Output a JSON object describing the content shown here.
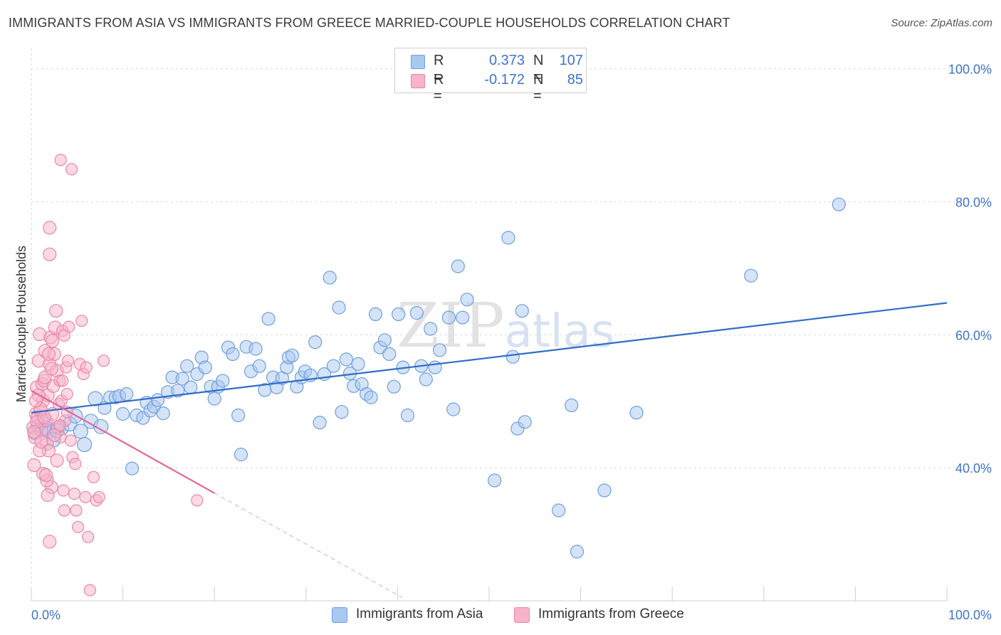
{
  "title": "IMMIGRANTS FROM ASIA VS IMMIGRANTS FROM GREECE MARRIED-COUPLE HOUSEHOLDS CORRELATION CHART",
  "source": "Source: ZipAtlas.com",
  "watermark": "ZIPatlas",
  "legend": {
    "rows": [
      {
        "r_label": "R =",
        "r_value": "0.373",
        "n_label": "N =",
        "n_value": "107"
      },
      {
        "r_label": "R =",
        "r_value": "-0.172",
        "n_label": "N =",
        "n_value": "85"
      }
    ]
  },
  "bottom_legend": [
    "Immigrants from Asia",
    "Immigrants from Greece"
  ],
  "colors": {
    "asia_fill": "#a9c8f0",
    "asia_stroke": "#6f9fde",
    "asia_line": "#2f6cc9",
    "greece_fill": "#f6b3ca",
    "greece_stroke": "#ea86a8",
    "greece_line": "#e0679a",
    "tick_text": "#3f74c8",
    "grid": "#d9d9d9"
  },
  "chart_data": {
    "type": "scatter",
    "title": "IMMIGRANTS FROM ASIA VS IMMIGRANTS FROM GREECE MARRIED-COUPLE HOUSEHOLDS CORRELATION CHART",
    "xlabel": "",
    "ylabel": "Married-couple Households",
    "xlim": [
      0,
      100
    ],
    "ylim": [
      20,
      102
    ],
    "x_tick_labels": [
      "0.0%",
      "100.0%"
    ],
    "y_tick_labels": [
      "40.0%",
      "60.0%",
      "80.0%",
      "100.0%"
    ],
    "y_ticks": [
      40,
      60,
      80,
      100
    ],
    "grid": true,
    "legend_position": "top-center",
    "series": [
      {
        "name": "Immigrants from Asia",
        "R": 0.373,
        "N": 107,
        "trend": {
          "x": [
            0,
            100
          ],
          "y": [
            48.3,
            64.8
          ],
          "style": "solid"
        },
        "points": [
          [
            0.4,
            45.3
          ],
          [
            0.8,
            46.3
          ],
          [
            1.2,
            47.0
          ],
          [
            1.6,
            46.0
          ],
          [
            2.0,
            45.5
          ],
          [
            2.4,
            44.2
          ],
          [
            2.8,
            45.6
          ],
          [
            3.3,
            46.0
          ],
          [
            4.2,
            46.6
          ],
          [
            4.8,
            47.8
          ],
          [
            5.4,
            45.5
          ],
          [
            5.8,
            43.5
          ],
          [
            6.5,
            47.0
          ],
          [
            7.0,
            50.4
          ],
          [
            7.6,
            46.2
          ],
          [
            8.0,
            49.0
          ],
          [
            8.6,
            50.6
          ],
          [
            9.2,
            50.6
          ],
          [
            9.6,
            50.8
          ],
          [
            10.0,
            48.1
          ],
          [
            10.4,
            51.1
          ],
          [
            11.0,
            39.9
          ],
          [
            11.5,
            47.9
          ],
          [
            12.2,
            47.5
          ],
          [
            12.6,
            49.8
          ],
          [
            13.0,
            48.6
          ],
          [
            13.4,
            49.2
          ],
          [
            13.8,
            50.2
          ],
          [
            14.4,
            48.2
          ],
          [
            14.9,
            51.4
          ],
          [
            15.4,
            53.6
          ],
          [
            16.0,
            51.6
          ],
          [
            16.5,
            53.4
          ],
          [
            17.0,
            55.3
          ],
          [
            17.4,
            52.1
          ],
          [
            18.1,
            54.1
          ],
          [
            18.6,
            56.6
          ],
          [
            19.0,
            55.1
          ],
          [
            19.6,
            52.2
          ],
          [
            20.0,
            50.4
          ],
          [
            20.4,
            52.2
          ],
          [
            20.9,
            53.1
          ],
          [
            21.5,
            58.1
          ],
          [
            22.0,
            57.1
          ],
          [
            22.6,
            47.9
          ],
          [
            22.9,
            42.0
          ],
          [
            23.5,
            58.2
          ],
          [
            24.0,
            54.5
          ],
          [
            24.5,
            57.9
          ],
          [
            24.9,
            55.3
          ],
          [
            25.5,
            51.7
          ],
          [
            25.9,
            62.4
          ],
          [
            26.4,
            53.6
          ],
          [
            26.8,
            52.1
          ],
          [
            27.4,
            53.5
          ],
          [
            27.9,
            55.1
          ],
          [
            28.1,
            56.6
          ],
          [
            28.5,
            56.9
          ],
          [
            29.0,
            52.2
          ],
          [
            29.5,
            53.6
          ],
          [
            29.9,
            54.5
          ],
          [
            30.5,
            53.9
          ],
          [
            31.0,
            58.9
          ],
          [
            31.5,
            46.8
          ],
          [
            32.0,
            54.1
          ],
          [
            32.6,
            68.6
          ],
          [
            33.0,
            55.3
          ],
          [
            33.6,
            64.1
          ],
          [
            33.9,
            48.4
          ],
          [
            34.4,
            56.3
          ],
          [
            34.8,
            54.2
          ],
          [
            35.2,
            52.3
          ],
          [
            35.7,
            55.6
          ],
          [
            36.1,
            52.6
          ],
          [
            36.6,
            51.1
          ],
          [
            37.1,
            50.6
          ],
          [
            37.6,
            63.1
          ],
          [
            38.1,
            58.1
          ],
          [
            38.6,
            59.2
          ],
          [
            39.1,
            57.1
          ],
          [
            39.6,
            52.2
          ],
          [
            40.1,
            63.1
          ],
          [
            40.6,
            55.1
          ],
          [
            41.1,
            47.9
          ],
          [
            42.1,
            63.3
          ],
          [
            42.6,
            55.3
          ],
          [
            43.1,
            53.3
          ],
          [
            43.6,
            60.9
          ],
          [
            44.1,
            55.1
          ],
          [
            44.6,
            57.7
          ],
          [
            45.6,
            62.6
          ],
          [
            46.1,
            48.8
          ],
          [
            46.6,
            70.3
          ],
          [
            47.1,
            62.6
          ],
          [
            47.6,
            65.3
          ],
          [
            50.6,
            38.1
          ],
          [
            52.1,
            74.6
          ],
          [
            52.6,
            56.7
          ],
          [
            53.1,
            45.9
          ],
          [
            53.6,
            63.6
          ],
          [
            53.9,
            46.9
          ],
          [
            57.6,
            33.6
          ],
          [
            59.0,
            49.4
          ],
          [
            59.6,
            27.4
          ],
          [
            62.6,
            36.6
          ],
          [
            66.1,
            48.3
          ],
          [
            78.6,
            68.9
          ],
          [
            88.2,
            79.6
          ]
        ]
      },
      {
        "name": "Immigrants from Greece",
        "R": -0.172,
        "N": 85,
        "trend": {
          "x": [
            0,
            20
          ],
          "y": [
            51.6,
            36.2
          ],
          "style": "solid",
          "extension": {
            "x": [
              20,
              40.5
            ],
            "y": [
              36.2,
              20.5
            ],
            "style": "dashed"
          }
        },
        "points": [
          [
            0.2,
            46.1
          ],
          [
            0.3,
            40.4
          ],
          [
            0.4,
            44.6
          ],
          [
            0.5,
            48.1
          ],
          [
            0.6,
            52.1
          ],
          [
            0.7,
            47.6
          ],
          [
            0.8,
            56.1
          ],
          [
            0.9,
            60.1
          ],
          [
            1.0,
            48.6
          ],
          [
            1.1,
            45.6
          ],
          [
            1.2,
            52.6
          ],
          [
            1.3,
            50.1
          ],
          [
            1.4,
            53.1
          ],
          [
            1.5,
            57.6
          ],
          [
            1.6,
            47.1
          ],
          [
            1.7,
            43.6
          ],
          [
            1.8,
            50.9
          ],
          [
            1.9,
            42.6
          ],
          [
            2.0,
            55.6
          ],
          [
            2.1,
            59.6
          ],
          [
            2.2,
            37.1
          ],
          [
            2.3,
            48.1
          ],
          [
            2.4,
            52.3
          ],
          [
            2.5,
            57.1
          ],
          [
            2.6,
            61.1
          ],
          [
            2.7,
            63.6
          ],
          [
            2.8,
            54.6
          ],
          [
            2.9,
            46.1
          ],
          [
            3.0,
            49.6
          ],
          [
            3.1,
            53.1
          ],
          [
            3.2,
            44.6
          ],
          [
            3.3,
            50.1
          ],
          [
            3.4,
            60.6
          ],
          [
            3.5,
            36.6
          ],
          [
            3.6,
            33.6
          ],
          [
            3.7,
            47.1
          ],
          [
            3.8,
            55.1
          ],
          [
            3.9,
            51.1
          ],
          [
            4.0,
            56.1
          ],
          [
            4.1,
            61.2
          ],
          [
            4.3,
            44.1
          ],
          [
            4.5,
            41.6
          ],
          [
            4.7,
            36.1
          ],
          [
            4.9,
            33.6
          ],
          [
            5.1,
            31.1
          ],
          [
            5.3,
            55.6
          ],
          [
            5.5,
            62.1
          ],
          [
            5.7,
            54.1
          ],
          [
            5.9,
            35.6
          ],
          [
            6.2,
            29.6
          ],
          [
            6.4,
            21.6
          ],
          [
            6.8,
            38.6
          ],
          [
            7.1,
            35.1
          ],
          [
            7.4,
            35.6
          ],
          [
            7.9,
            56.1
          ],
          [
            2.0,
            28.9
          ],
          [
            3.1,
            46.4
          ],
          [
            1.7,
            38.1
          ],
          [
            0.9,
            42.6
          ],
          [
            1.3,
            39.1
          ],
          [
            2.0,
            76.1
          ],
          [
            2.0,
            72.1
          ],
          [
            3.2,
            86.3
          ],
          [
            4.4,
            84.9
          ],
          [
            1.9,
            57.1
          ],
          [
            1.0,
            48.9
          ],
          [
            0.6,
            46.9
          ],
          [
            2.5,
            44.9
          ],
          [
            1.5,
            53.6
          ],
          [
            3.9,
            48.4
          ],
          [
            0.8,
            50.9
          ],
          [
            2.3,
            59.1
          ],
          [
            1.1,
            43.9
          ],
          [
            2.8,
            41.1
          ],
          [
            1.6,
            38.9
          ],
          [
            0.5,
            50.1
          ],
          [
            1.4,
            47.6
          ],
          [
            2.2,
            54.9
          ],
          [
            3.6,
            59.9
          ],
          [
            0.3,
            45.4
          ],
          [
            4.8,
            40.6
          ],
          [
            1.8,
            35.9
          ],
          [
            6.0,
            55.1
          ],
          [
            3.4,
            53.1
          ],
          [
            18.1,
            35.1
          ]
        ]
      }
    ]
  }
}
